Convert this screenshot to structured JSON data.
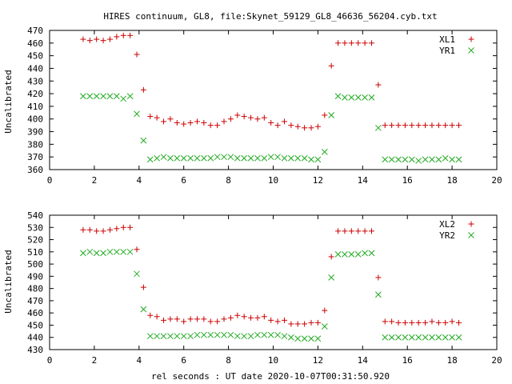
{
  "title": "HIRES continuum, GL8, file:Skynet_59129_GL8_46636_56204.cyb.txt",
  "xlabel": "rel seconds : UT date 2020-10-07T00:31:50.920",
  "colors": {
    "red": "#cc0000",
    "green": "#22aa22"
  },
  "chart_data": [
    {
      "type": "scatter",
      "ylabel": "Uncalibrated",
      "xlim": [
        0,
        20
      ],
      "ylim": [
        360,
        470
      ],
      "xticks": [
        0,
        2,
        4,
        6,
        8,
        10,
        12,
        14,
        16,
        18,
        20
      ],
      "yticks": [
        360,
        370,
        380,
        390,
        400,
        410,
        420,
        430,
        440,
        450,
        460,
        470
      ],
      "legend_position": "top-right",
      "series": [
        {
          "name": "XL1",
          "marker": "plus",
          "color": "#cc0000",
          "x": [
            1.5,
            1.8,
            2.1,
            2.4,
            2.7,
            3.0,
            3.3,
            3.6,
            3.9,
            4.2,
            4.5,
            4.8,
            5.1,
            5.4,
            5.7,
            6.0,
            6.3,
            6.6,
            6.9,
            7.2,
            7.5,
            7.8,
            8.1,
            8.4,
            8.7,
            9.0,
            9.3,
            9.6,
            9.9,
            10.2,
            10.5,
            10.8,
            11.1,
            11.4,
            11.7,
            12.0,
            12.3,
            12.6,
            12.9,
            13.2,
            13.5,
            13.8,
            14.1,
            14.4,
            14.7,
            15.0,
            15.3,
            15.6,
            15.9,
            16.2,
            16.5,
            16.8,
            17.1,
            17.4,
            17.7,
            18.0,
            18.3
          ],
          "y": [
            463,
            462,
            463,
            462,
            463,
            465,
            466,
            466,
            451,
            423,
            402,
            401,
            398,
            400,
            397,
            396,
            397,
            398,
            397,
            395,
            395,
            398,
            400,
            403,
            402,
            401,
            400,
            401,
            397,
            395,
            398,
            395,
            394,
            393,
            393,
            394,
            403,
            442,
            460,
            460,
            460,
            460,
            460,
            460,
            427,
            395,
            395,
            395,
            395,
            395,
            395,
            395,
            395,
            395,
            395,
            395,
            395
          ]
        },
        {
          "name": "YR1",
          "marker": "cross",
          "color": "#22aa22",
          "x": [
            1.5,
            1.8,
            2.1,
            2.4,
            2.7,
            3.0,
            3.3,
            3.6,
            3.9,
            4.2,
            4.5,
            4.8,
            5.1,
            5.4,
            5.7,
            6.0,
            6.3,
            6.6,
            6.9,
            7.2,
            7.5,
            7.8,
            8.1,
            8.4,
            8.7,
            9.0,
            9.3,
            9.6,
            9.9,
            10.2,
            10.5,
            10.8,
            11.1,
            11.4,
            11.7,
            12.0,
            12.3,
            12.6,
            12.9,
            13.2,
            13.5,
            13.8,
            14.1,
            14.4,
            14.7,
            15.0,
            15.3,
            15.6,
            15.9,
            16.2,
            16.5,
            16.8,
            17.1,
            17.4,
            17.7,
            18.0,
            18.3
          ],
          "y": [
            418,
            418,
            418,
            418,
            418,
            418,
            416,
            418,
            404,
            383,
            368,
            369,
            370,
            369,
            369,
            369,
            369,
            369,
            369,
            369,
            370,
            370,
            370,
            369,
            369,
            369,
            369,
            369,
            370,
            370,
            369,
            369,
            369,
            369,
            368,
            368,
            374,
            403,
            418,
            417,
            417,
            417,
            417,
            417,
            393,
            368,
            368,
            368,
            368,
            368,
            367,
            368,
            368,
            368,
            369,
            368,
            368
          ]
        }
      ]
    },
    {
      "type": "scatter",
      "ylabel": "Uncalibrated",
      "xlim": [
        0,
        20
      ],
      "ylim": [
        430,
        540
      ],
      "xticks": [
        0,
        2,
        4,
        6,
        8,
        10,
        12,
        14,
        16,
        18,
        20
      ],
      "yticks": [
        430,
        440,
        450,
        460,
        470,
        480,
        490,
        500,
        510,
        520,
        530,
        540
      ],
      "legend_position": "top-right",
      "series": [
        {
          "name": "XL2",
          "marker": "plus",
          "color": "#cc0000",
          "x": [
            1.5,
            1.8,
            2.1,
            2.4,
            2.7,
            3.0,
            3.3,
            3.6,
            3.9,
            4.2,
            4.5,
            4.8,
            5.1,
            5.4,
            5.7,
            6.0,
            6.3,
            6.6,
            6.9,
            7.2,
            7.5,
            7.8,
            8.1,
            8.4,
            8.7,
            9.0,
            9.3,
            9.6,
            9.9,
            10.2,
            10.5,
            10.8,
            11.1,
            11.4,
            11.7,
            12.0,
            12.3,
            12.6,
            12.9,
            13.2,
            13.5,
            13.8,
            14.1,
            14.4,
            14.7,
            15.0,
            15.3,
            15.6,
            15.9,
            16.2,
            16.5,
            16.8,
            17.1,
            17.4,
            17.7,
            18.0,
            18.3
          ],
          "y": [
            528,
            528,
            527,
            527,
            528,
            529,
            530,
            530,
            512,
            481,
            458,
            457,
            454,
            455,
            455,
            453,
            455,
            455,
            455,
            453,
            453,
            455,
            456,
            458,
            457,
            456,
            456,
            457,
            454,
            453,
            454,
            451,
            451,
            451,
            452,
            452,
            462,
            506,
            527,
            527,
            527,
            527,
            527,
            527,
            489,
            453,
            453,
            452,
            452,
            452,
            452,
            452,
            453,
            452,
            452,
            453,
            452
          ]
        },
        {
          "name": "YR2",
          "marker": "cross",
          "color": "#22aa22",
          "x": [
            1.5,
            1.8,
            2.1,
            2.4,
            2.7,
            3.0,
            3.3,
            3.6,
            3.9,
            4.2,
            4.5,
            4.8,
            5.1,
            5.4,
            5.7,
            6.0,
            6.3,
            6.6,
            6.9,
            7.2,
            7.5,
            7.8,
            8.1,
            8.4,
            8.7,
            9.0,
            9.3,
            9.6,
            9.9,
            10.2,
            10.5,
            10.8,
            11.1,
            11.4,
            11.7,
            12.0,
            12.3,
            12.6,
            12.9,
            13.2,
            13.5,
            13.8,
            14.1,
            14.4,
            14.7,
            15.0,
            15.3,
            15.6,
            15.9,
            16.2,
            16.5,
            16.8,
            17.1,
            17.4,
            17.7,
            18.0,
            18.3
          ],
          "y": [
            509,
            510,
            509,
            509,
            510,
            510,
            510,
            510,
            492,
            463,
            441,
            441,
            441,
            441,
            441,
            441,
            441,
            442,
            442,
            442,
            442,
            442,
            442,
            441,
            441,
            441,
            442,
            442,
            442,
            442,
            441,
            440,
            439,
            439,
            439,
            439,
            449,
            489,
            508,
            508,
            508,
            508,
            509,
            509,
            475,
            440,
            440,
            440,
            440,
            440,
            440,
            440,
            440,
            440,
            440,
            440,
            440
          ]
        }
      ]
    }
  ]
}
